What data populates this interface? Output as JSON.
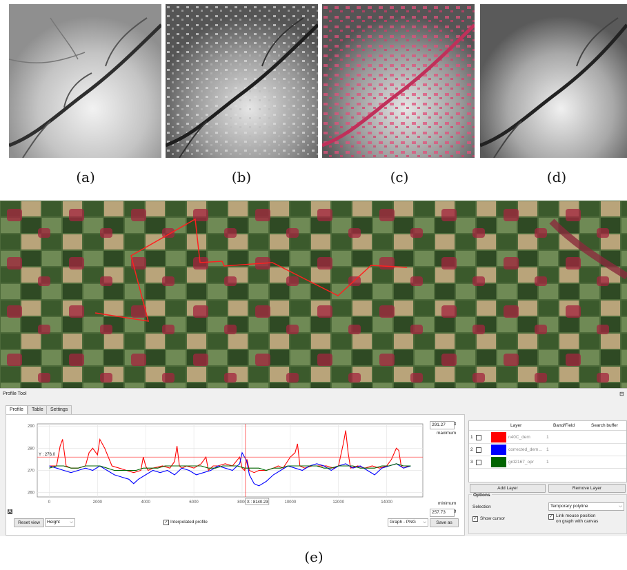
{
  "captions": {
    "a": "(a)",
    "b": "(b)",
    "c": "(c)",
    "d": "(d)",
    "e": "(e)"
  },
  "profile_tool": {
    "title": "Profile Tool",
    "tabs": [
      "Profile",
      "Table",
      "Settings"
    ],
    "maximum_value": "291.27",
    "maximum_label": "maximum",
    "minimum_value": "257.73",
    "minimum_label": "minimum",
    "y_cursor_label": "Y : 276.0",
    "x_cursor_label": "X : 8140.23",
    "reset_view": "Reset view",
    "plot_type": "Height",
    "interpolated_profile": "Interpolated profile",
    "export_format": "Graph - PNG",
    "save_as": "Save as",
    "layer_table": {
      "headers": [
        "Layer",
        "Band/Field",
        "Search buffer"
      ],
      "rows": [
        {
          "index": "1",
          "color": "#ff0000",
          "name": "n40C_dem",
          "band": "1"
        },
        {
          "index": "2",
          "color": "#0000ff",
          "name": "corrected_dem...",
          "band": "1"
        },
        {
          "index": "3",
          "color": "#006400",
          "name": "grd2167_opr",
          "band": "1"
        }
      ]
    },
    "add_layer": "Add Layer",
    "remove_layer": "Remove Layer",
    "options_title": "Options",
    "selection_label": "Selection",
    "selection_value": "Temporary polyline",
    "show_cursor": "Show cursor",
    "link_mouse_line1": "Link mouse position",
    "link_mouse_line2": "on graph with canvas"
  },
  "chart_data": {
    "type": "line",
    "ylim": [
      258,
      291
    ],
    "xlim": [
      -500,
      15500
    ],
    "xticks": [
      0,
      2000,
      4000,
      6000,
      8000,
      10000,
      12000,
      14000
    ],
    "yticks": [
      260,
      270,
      280,
      290
    ],
    "cursor": {
      "x": 8140,
      "y": 276
    },
    "series": [
      {
        "name": "n40C_dem",
        "color": "#ff0000",
        "x": [
          0,
          300,
          450,
          550,
          700,
          900,
          1200,
          1500,
          1650,
          1800,
          2000,
          2100,
          2300,
          2600,
          2900,
          3200,
          3500,
          3800,
          3900,
          4000,
          4100,
          4300,
          4700,
          5000,
          5200,
          5300,
          5400,
          5500,
          5700,
          6000,
          6300,
          6500,
          6600,
          6800,
          7000,
          7300,
          7600,
          7900,
          8000,
          8100,
          8200,
          8300,
          8500,
          8700,
          9000,
          9300,
          9500,
          9700,
          10000,
          10200,
          10300,
          10400,
          10600,
          10900,
          11200,
          11500,
          11800,
          12000,
          12200,
          12300,
          12400,
          12500,
          12800,
          13100,
          13400,
          13700,
          14000,
          14200,
          14400,
          14500,
          14600,
          14700,
          14900,
          15000
        ],
        "y": [
          272,
          272,
          281,
          284,
          272,
          271,
          271,
          272,
          278,
          280,
          277,
          284,
          280,
          272,
          271,
          270,
          269,
          270,
          276,
          272,
          270,
          271,
          272,
          271,
          274,
          281,
          272,
          271,
          272,
          271,
          273,
          276,
          270,
          272,
          272,
          273,
          272,
          276,
          271,
          270,
          275,
          270,
          269,
          270,
          270,
          271,
          272,
          271,
          276,
          278,
          282,
          272,
          271,
          272,
          272,
          272,
          271,
          272,
          282,
          288,
          278,
          271,
          272,
          271,
          272,
          271,
          272,
          275,
          280,
          279,
          272,
          271,
          272,
          272
        ]
      },
      {
        "name": "corrected_dem...",
        "color": "#0000ff",
        "x": [
          0,
          300,
          600,
          900,
          1200,
          1500,
          1800,
          2100,
          2400,
          2700,
          3000,
          3300,
          3500,
          3700,
          4000,
          4300,
          4600,
          4900,
          5200,
          5500,
          5800,
          6100,
          6400,
          6700,
          7000,
          7300,
          7600,
          7900,
          8000,
          8100,
          8200,
          8300,
          8500,
          8700,
          9000,
          9300,
          9600,
          9900,
          10200,
          10500,
          10800,
          11100,
          11400,
          11700,
          12000,
          12300,
          12600,
          12900,
          13200,
          13500,
          13800,
          14100,
          14400,
          14700,
          15000
        ],
        "y": [
          272,
          271,
          270,
          269,
          270,
          271,
          270,
          272,
          270,
          268,
          267,
          266,
          264,
          266,
          268,
          270,
          269,
          270,
          268,
          271,
          270,
          268,
          269,
          270,
          272,
          271,
          270,
          273,
          278,
          276,
          274,
          268,
          264,
          263,
          265,
          268,
          270,
          272,
          271,
          270,
          272,
          273,
          272,
          270,
          272,
          273,
          271,
          272,
          270,
          268,
          271,
          272,
          273,
          271,
          272
        ]
      },
      {
        "name": "grd2167_opr",
        "color": "#006400",
        "x": [
          0,
          300,
          600,
          900,
          1200,
          1500,
          1800,
          2100,
          2400,
          2700,
          3000,
          3300,
          3600,
          3900,
          4200,
          4500,
          4800,
          5100,
          5400,
          5700,
          6000,
          6300,
          6600,
          6900,
          7200,
          7500,
          7800,
          8100,
          8400,
          8700,
          9000,
          9300,
          9600,
          9900,
          10200,
          10500,
          10800,
          11100,
          11400,
          11700,
          12000,
          12300,
          12600,
          12900,
          13200,
          13500,
          13800,
          14100,
          14400,
          14700,
          15000
        ],
        "y": [
          271,
          272,
          272,
          271,
          271,
          272,
          272,
          272,
          271,
          270,
          270,
          270,
          270,
          271,
          271,
          271,
          272,
          272,
          272,
          272,
          272,
          272,
          271,
          271,
          272,
          272,
          272,
          271,
          271,
          271,
          270,
          271,
          271,
          272,
          272,
          272,
          272,
          272,
          271,
          271,
          272,
          272,
          272,
          271,
          271,
          271,
          272,
          272,
          273,
          272,
          272
        ]
      }
    ]
  }
}
